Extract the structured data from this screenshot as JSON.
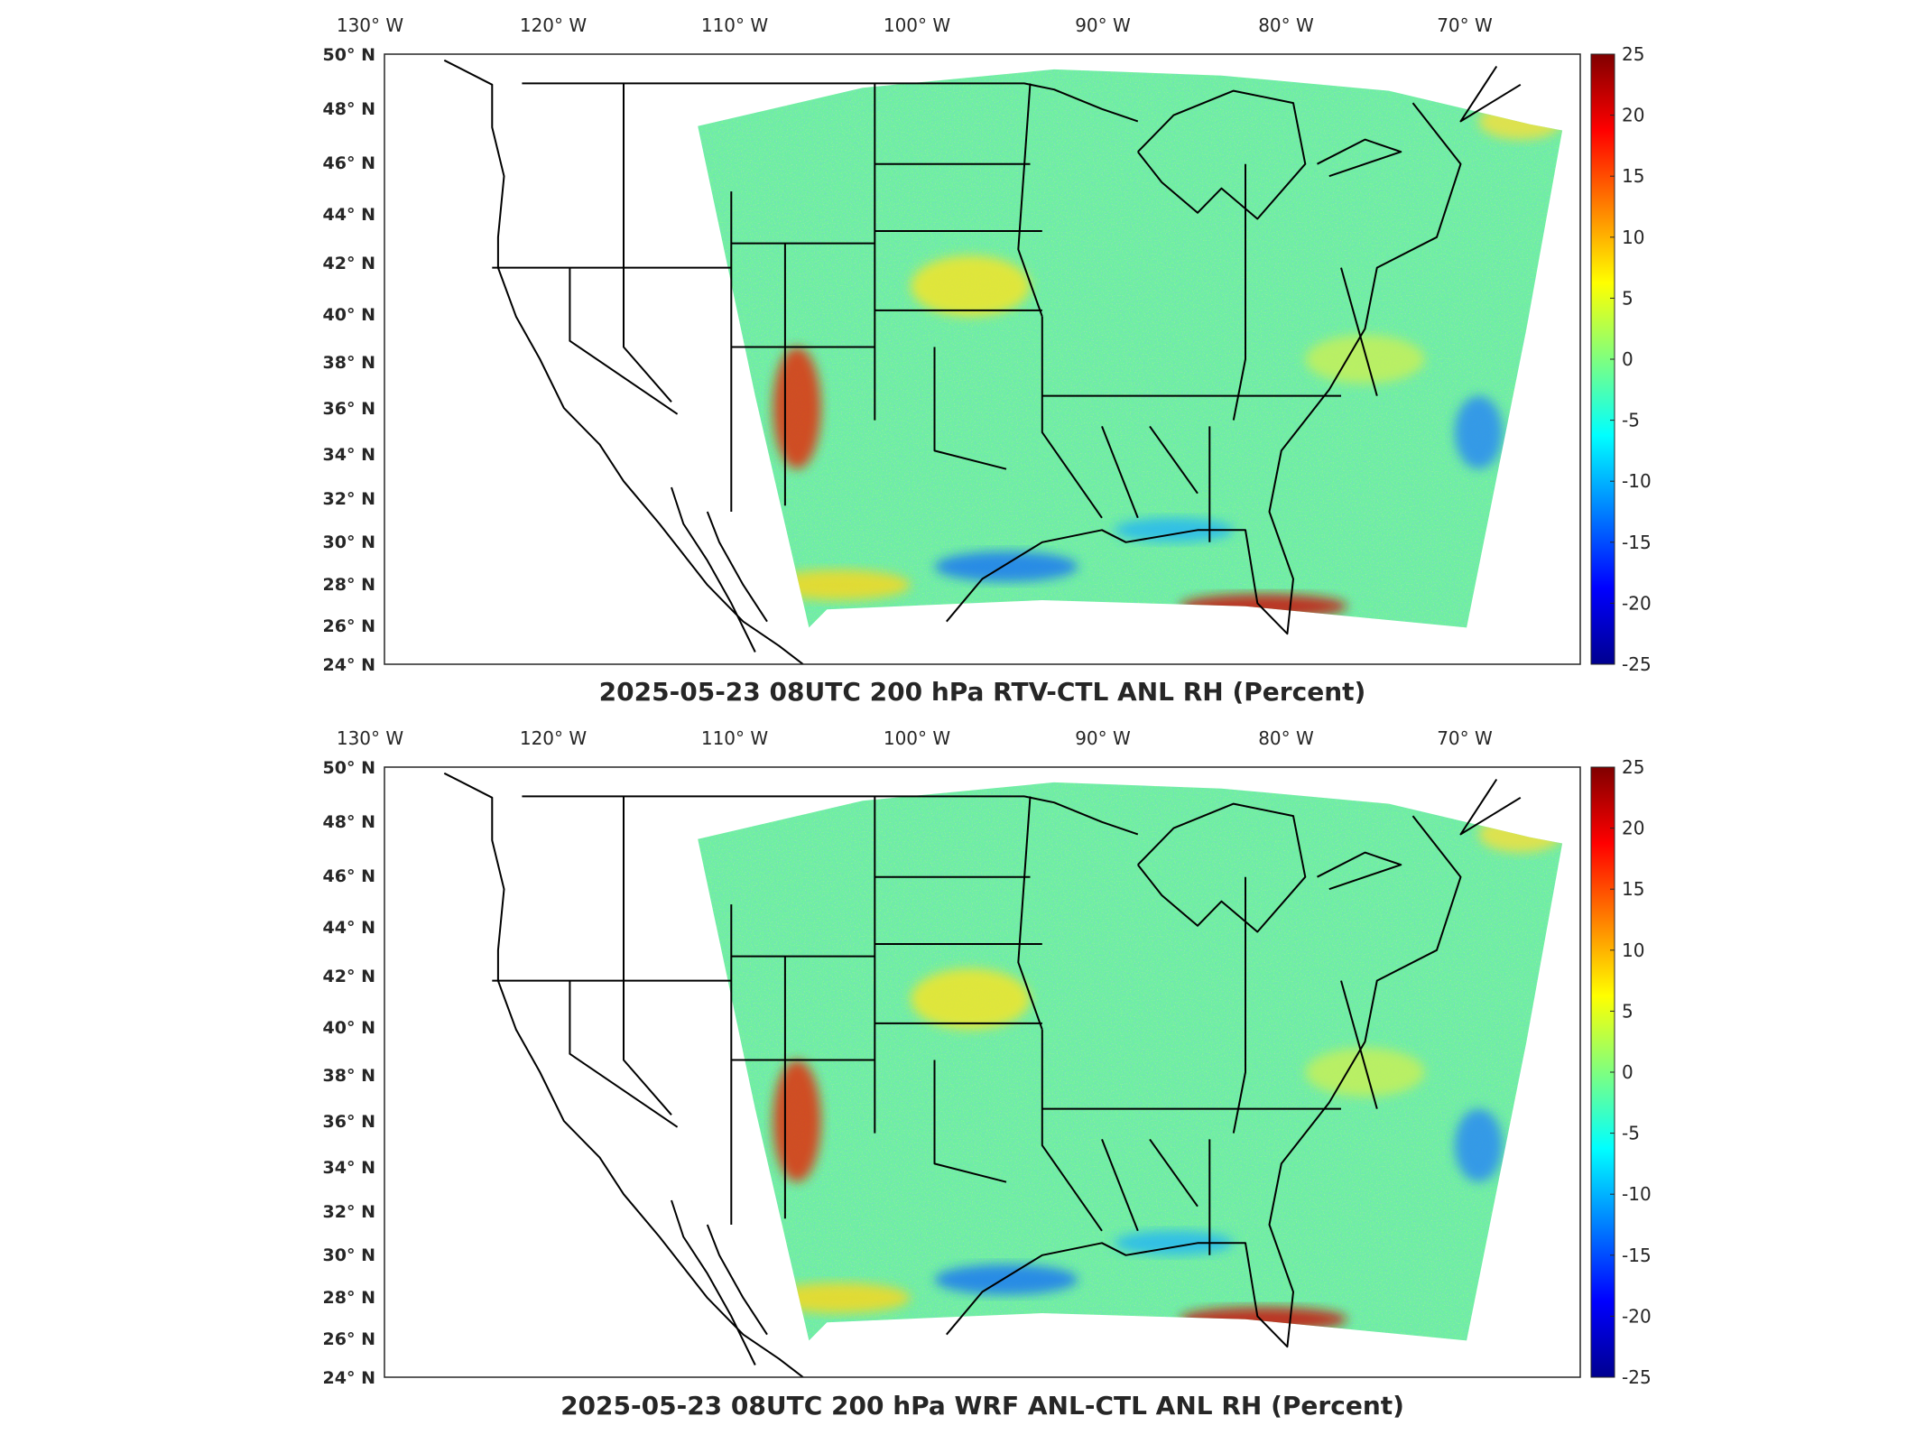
{
  "chart_data": [
    {
      "type": "heatmap",
      "title": "2025-05-23 08UTC 200 hPa RTV-CTL ANL RH (Percent)",
      "lon_ticks": [
        "130",
        "120",
        "110",
        "100",
        "90",
        "80",
        "70"
      ],
      "lon_suffix": "W",
      "lat_ticks": [
        "50",
        "48",
        "46",
        "44",
        "42",
        "40",
        "38",
        "36",
        "34",
        "32",
        "30",
        "28",
        "26",
        "24"
      ],
      "lat_suffix": "N",
      "lon_range": [
        -131,
        -65
      ],
      "lat_range": [
        24,
        50
      ],
      "colorbar": {
        "labels": [
          "25",
          "20",
          "15",
          "10",
          "5",
          "0",
          "-5",
          "-10",
          "-15",
          "-20",
          "-25"
        ],
        "range": [
          -25,
          25
        ],
        "colormap": "jet"
      },
      "field_features": [
        {
          "region": "Colorado Plateau / Four Corners",
          "value": 20
        },
        {
          "region": "South Florida / Gulf Stream",
          "value": 22
        },
        {
          "region": "Texas coastal Gulf",
          "value": -12
        },
        {
          "region": "Western Atlantic off Carolinas",
          "value": -10
        },
        {
          "region": "Nebraska / Kansas",
          "value": 6
        }
      ]
    },
    {
      "type": "heatmap",
      "title": "2025-05-23 08UTC 200 hPa WRF ANL-CTL ANL RH (Percent)",
      "lon_ticks": [
        "130",
        "120",
        "110",
        "100",
        "90",
        "80",
        "70"
      ],
      "lon_suffix": "W",
      "lat_ticks": [
        "50",
        "48",
        "46",
        "44",
        "42",
        "40",
        "38",
        "36",
        "34",
        "32",
        "30",
        "28",
        "26",
        "24"
      ],
      "lat_suffix": "N",
      "lon_range": [
        -131,
        -65
      ],
      "lat_range": [
        24,
        50
      ],
      "colorbar": {
        "labels": [
          "25",
          "20",
          "15",
          "10",
          "5",
          "0",
          "-5",
          "-10",
          "-15",
          "-20",
          "-25"
        ],
        "range": [
          -25,
          25
        ],
        "colormap": "jet"
      },
      "field_features": [
        {
          "region": "Colorado Plateau / Four Corners",
          "value": 20
        },
        {
          "region": "South Florida / Gulf Stream",
          "value": 22
        },
        {
          "region": "Texas coastal Gulf",
          "value": -12
        },
        {
          "region": "Western Atlantic off Carolinas",
          "value": -10
        },
        {
          "region": "Nebraska / Kansas",
          "value": 7
        }
      ]
    }
  ]
}
